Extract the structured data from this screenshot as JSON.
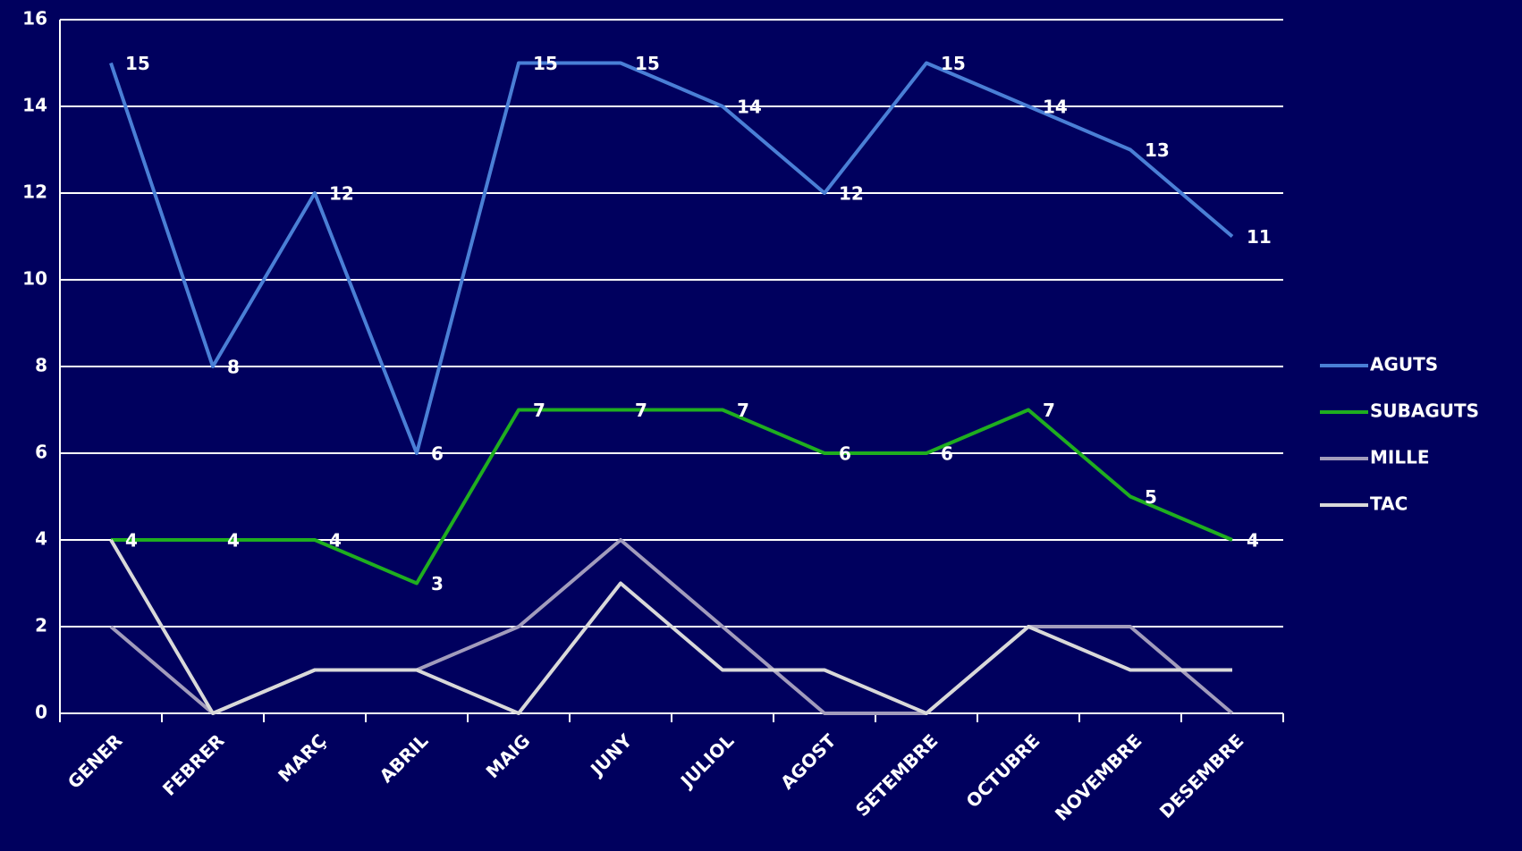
{
  "chart_data": {
    "type": "line",
    "categories": [
      "GENER",
      "FEBRER",
      "MARÇ",
      "ABRIL",
      "MAIG",
      "JUNY",
      "JULIOL",
      "AGOST",
      "SETEMBRE",
      "OCTUBRE",
      "NOVEMBRE",
      "DESEMBRE"
    ],
    "series": [
      {
        "name": "AGUTS",
        "color": "#4a7fd6",
        "show_labels": true,
        "values": [
          15,
          8,
          12,
          6,
          15,
          15,
          14,
          12,
          15,
          14,
          13,
          11
        ]
      },
      {
        "name": "SUBAGUTS",
        "color": "#1fae1f",
        "show_labels": true,
        "values": [
          4,
          4,
          4,
          3,
          7,
          7,
          7,
          6,
          6,
          7,
          5,
          4
        ]
      },
      {
        "name": "MILLE",
        "color": "#a29cbc",
        "show_labels": false,
        "values": [
          2,
          0,
          1,
          1,
          2,
          4,
          2,
          0,
          0,
          2,
          2,
          0
        ]
      },
      {
        "name": "TAC",
        "color": "#d9d9d9",
        "show_labels": false,
        "values": [
          4,
          0,
          1,
          1,
          0,
          3,
          1,
          1,
          0,
          2,
          1,
          1
        ]
      }
    ],
    "ylim": [
      0,
      16
    ],
    "yticks": [
      0,
      2,
      4,
      6,
      8,
      10,
      12,
      14,
      16
    ],
    "grid": true,
    "legend": "right"
  }
}
